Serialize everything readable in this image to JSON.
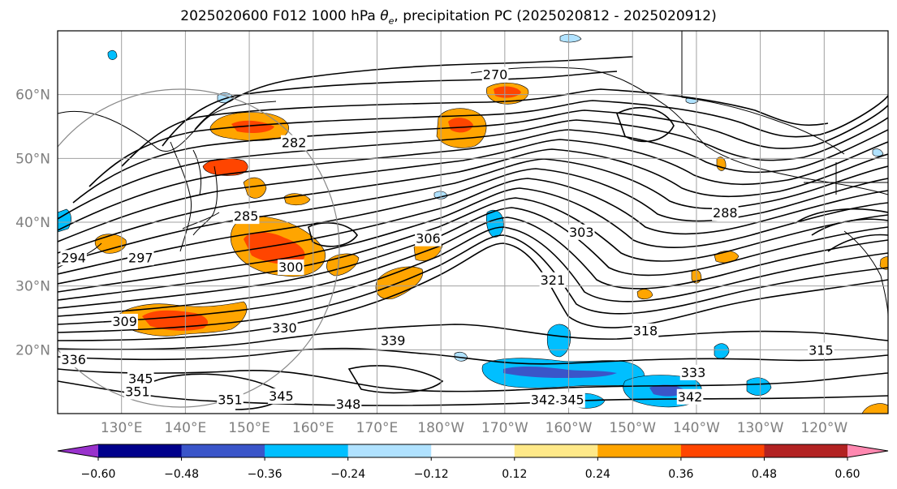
{
  "title": "2025020600 F012 1000 hPa θe, precipitation PC (2025020812 - 2025020912)",
  "title_parts": {
    "prefix": "2025020600 F012 1000 hPa ",
    "theta": "θ",
    "theta_sub": "e",
    "suffix": ", precipitation PC (2025020812 - 2025020912)"
  },
  "map": {
    "projection": "PlateCarree",
    "lon_range": [
      120,
      250
    ],
    "lat_range": [
      10,
      70
    ],
    "grid": true,
    "lat_labels": [
      "20°N",
      "30°N",
      "40°N",
      "50°N",
      "60°N"
    ],
    "lat_values": [
      20,
      30,
      40,
      50,
      60
    ],
    "lon_labels": [
      "130°E",
      "140°E",
      "150°E",
      "160°E",
      "170°E",
      "180°W",
      "170°W",
      "160°W",
      "150°W",
      "140°W",
      "130°W",
      "120°W"
    ],
    "lon_values": [
      130,
      140,
      150,
      160,
      170,
      180,
      190,
      200,
      210,
      220,
      230,
      240
    ]
  },
  "contour_labels": [
    {
      "text": "270",
      "lon": 188.5,
      "lat": 63.2
    },
    {
      "text": "282",
      "lon": 157,
      "lat": 52.5
    },
    {
      "text": "285",
      "lon": 149.5,
      "lat": 41
    },
    {
      "text": "288",
      "lon": 224.5,
      "lat": 41.5
    },
    {
      "text": "294",
      "lon": 122.5,
      "lat": 34.5
    },
    {
      "text": "297",
      "lon": 133,
      "lat": 34.5
    },
    {
      "text": "300",
      "lon": 156.5,
      "lat": 33
    },
    {
      "text": "303",
      "lon": 202,
      "lat": 38.5
    },
    {
      "text": "306",
      "lon": 178,
      "lat": 37.5
    },
    {
      "text": "309",
      "lon": 130.5,
      "lat": 24.5
    },
    {
      "text": "315",
      "lon": 239.5,
      "lat": 20
    },
    {
      "text": "318",
      "lon": 212,
      "lat": 23
    },
    {
      "text": "321",
      "lon": 197.5,
      "lat": 31
    },
    {
      "text": "330",
      "lon": 155.5,
      "lat": 23.5
    },
    {
      "text": "333",
      "lon": 219.5,
      "lat": 16.5
    },
    {
      "text": "336",
      "lon": 122.5,
      "lat": 18.5
    },
    {
      "text": "339",
      "lon": 172.5,
      "lat": 21.5
    },
    {
      "text": "342",
      "lon": 196,
      "lat": 12.2
    },
    {
      "text": "342",
      "lon": 219,
      "lat": 12.7
    },
    {
      "text": "345",
      "lon": 133,
      "lat": 15.5
    },
    {
      "text": "345",
      "lon": 155,
      "lat": 12.8
    },
    {
      "text": "345",
      "lon": 200.5,
      "lat": 12.2
    },
    {
      "text": "348",
      "lon": 165.5,
      "lat": 11.5
    },
    {
      "text": "351",
      "lon": 132.5,
      "lat": 13.5
    },
    {
      "text": "351",
      "lon": 147,
      "lat": 12.2
    }
  ],
  "colorbar": {
    "levels": [
      -0.6,
      -0.48,
      -0.36,
      -0.24,
      -0.12,
      0.12,
      0.24,
      0.36,
      0.48,
      0.6
    ],
    "tick_labels": [
      "−0.60",
      "−0.48",
      "−0.36",
      "−0.24",
      "−0.12",
      "0.12",
      "0.24",
      "0.36",
      "0.48",
      "0.60"
    ],
    "colors": [
      "#9932cc",
      "#00008b",
      "#3a55c9",
      "#00bfff",
      "#b0e2ff",
      "#ffffff",
      "#ffe989",
      "#ffa500",
      "#ff4500",
      "#b22222",
      "#ff88b0"
    ],
    "extend": "both"
  }
}
